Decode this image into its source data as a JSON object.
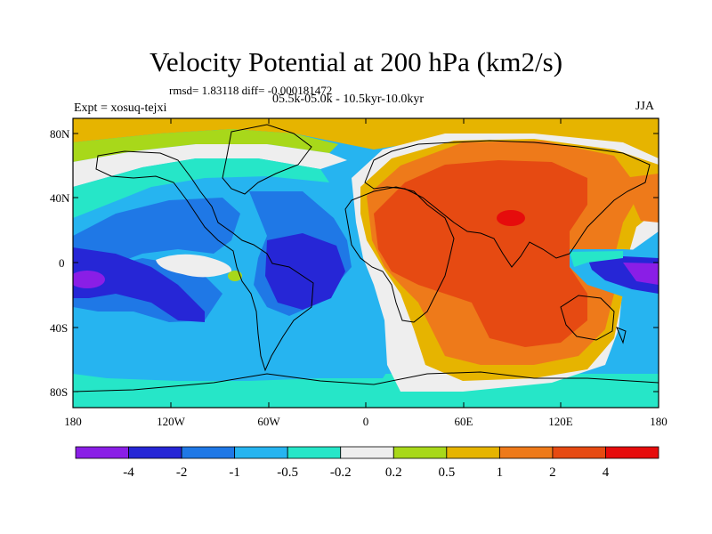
{
  "title": "Velocity Potential at 200 hPa (km2/s)",
  "stats": "rmsd= 1.83118 diff= -0.000181472",
  "expt": "Expt = xosuq-tejxi",
  "period": "05.5k-05.0k - 10.5kyr-10.0kyr",
  "season": "JJA",
  "lat_labels": [
    "80N",
    "40N",
    "0",
    "40S",
    "80S"
  ],
  "lon_labels": [
    "180",
    "120W",
    "60W",
    "0",
    "60E",
    "120E",
    "180"
  ],
  "colorbar": {
    "labels": [
      "-4",
      "-2",
      "-1",
      "-0.5",
      "-0.2",
      "0.2",
      "0.5",
      "1",
      "2",
      "4"
    ],
    "colors": [
      "#8a1ee6",
      "#2626d6",
      "#1f78e6",
      "#26b4f0",
      "#26e6c8",
      "#eeeeee",
      "#a8d81a",
      "#e6b400",
      "#ee7a1a",
      "#e64a12",
      "#e60c0c"
    ]
  }
}
